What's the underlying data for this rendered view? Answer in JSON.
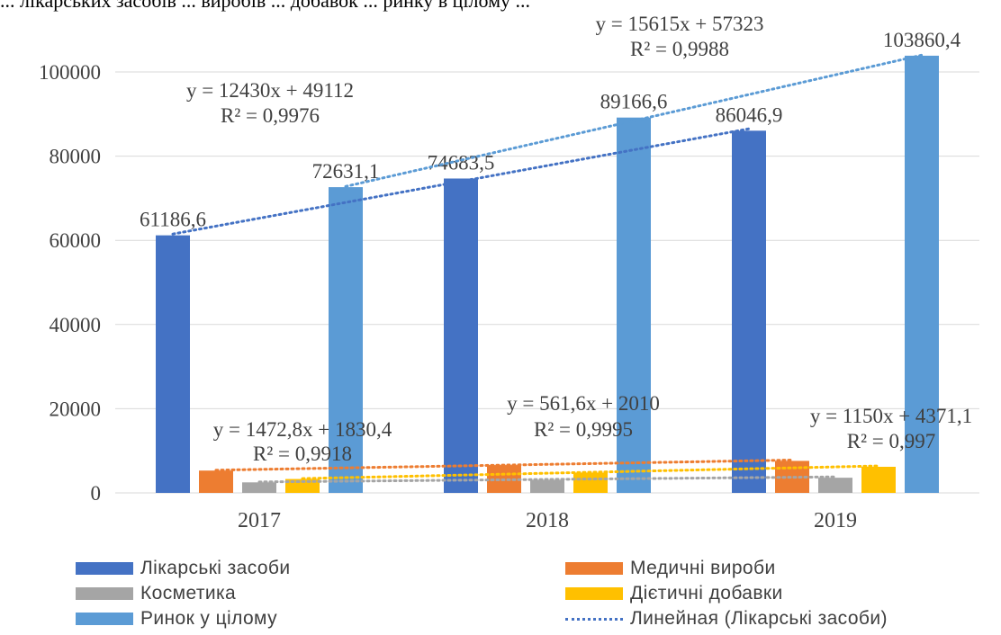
{
  "header_crop_text": "... лікарських засобів ... виробів ... добавок ... ринку в цілому ...",
  "colors": {
    "likarski": "#4472C4",
    "medychni": "#ED7D31",
    "kosmetyka": "#A5A5A5",
    "dietychni": "#FFC000",
    "rynok": "#5B9BD5"
  },
  "chart_data": {
    "type": "bar",
    "categories": [
      "2017",
      "2018",
      "2019"
    ],
    "ylim": [
      0,
      100000
    ],
    "yticks": [
      "0",
      "20000",
      "40000",
      "60000",
      "80000",
      "100000"
    ],
    "series": [
      {
        "name": "Лікарські засоби",
        "values": [
          61186.6,
          74683.5,
          86046.9
        ],
        "labels": [
          "61186,6",
          "74683,5",
          "86046,9"
        ]
      },
      {
        "name": "Медичні вироби",
        "values": [
          5300,
          6600,
          7600
        ]
      },
      {
        "name": "Косметика",
        "values": [
          2500,
          3100,
          3600
        ]
      },
      {
        "name": "Дієтичні добавки",
        "values": [
          3300,
          4800,
          6200
        ]
      },
      {
        "name": "Ринок у цілому",
        "values": [
          72631.1,
          89166.6,
          103860.4
        ],
        "labels": [
          "72631,1",
          "89166,6",
          "103860,4"
        ]
      }
    ],
    "trendlines": [
      {
        "series": "Ринок у цілому",
        "from": 72800,
        "to": 104000,
        "color": "#5B9BD5",
        "equation": "y = 15615x + 57323",
        "r2": "R² = 0,9988"
      },
      {
        "series": "Лікарські засоби",
        "from": 61500,
        "to": 86500,
        "color": "#4472C4",
        "equation": "y = 12430x + 49112",
        "r2": "R² = 0,9976"
      },
      {
        "series": "Медичні вироби",
        "from": 5400,
        "to": 7800,
        "color": "#ED7D31",
        "equation": "y = 1472,8x + 1830,4",
        "r2": "R² = 0,9918"
      },
      {
        "series": "Дієтичні добавки",
        "from": 3400,
        "to": 6400,
        "color": "#FFC000",
        "equation": "y = 1150x + 4371,1",
        "r2": "R² = 0,997"
      },
      {
        "series": "Косметика",
        "from": 2600,
        "to": 3800,
        "color": "#A5A5A5",
        "equation": "y = 561,6x + 2010",
        "r2": "R² = 0,9995"
      }
    ],
    "legend": [
      {
        "label": "Лікарські засоби",
        "color": "#4472C4",
        "style": "bar"
      },
      {
        "label": "Медичні вироби",
        "color": "#ED7D31",
        "style": "bar"
      },
      {
        "label": "Косметика",
        "color": "#A5A5A5",
        "style": "bar"
      },
      {
        "label": "Дієтичні добавки",
        "color": "#FFC000",
        "style": "bar"
      },
      {
        "label": "Ринок у цілому",
        "color": "#5B9BD5",
        "style": "bar"
      },
      {
        "label": "Линейная (Лікарські засоби)",
        "color": "#4472C4",
        "style": "dotted"
      }
    ],
    "legend_position": "bottom",
    "grid": true
  }
}
